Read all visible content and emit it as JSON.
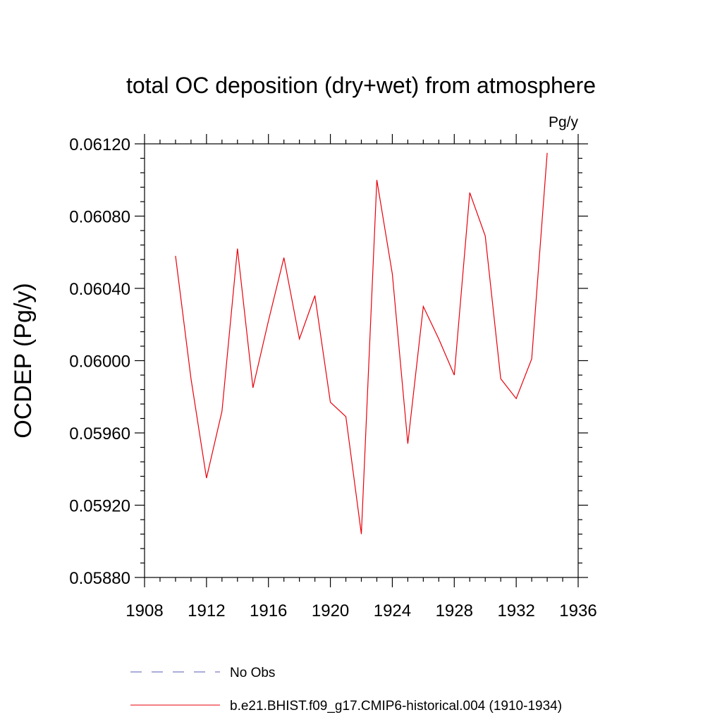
{
  "chart_data": {
    "type": "line",
    "title": "total OC deposition (dry+wet) from atmosphere",
    "units": "Pg/y",
    "xlabel": "",
    "ylabel": "OCDEP  (Pg/y)",
    "xlim": [
      1908,
      1936
    ],
    "ylim": [
      0.0588,
      0.0612
    ],
    "x_ticks": [
      "1908",
      "1912",
      "1916",
      "1920",
      "1924",
      "1928",
      "1932",
      "1936"
    ],
    "y_ticks": [
      "0.05880",
      "0.05920",
      "0.05960",
      "0.06000",
      "0.06040",
      "0.06080",
      "0.06120"
    ],
    "grid": false,
    "legend_position": "bottom",
    "series": [
      {
        "name": "No Obs",
        "style": "dashed",
        "color": "#5a5ab4",
        "x": [],
        "values": []
      },
      {
        "name": "b.e21.BHIST.f09_g17.CMIP6-historical.004 (1910-1934)",
        "style": "solid",
        "color": "#e8000b",
        "x": [
          1910,
          1911,
          1912,
          1913,
          1914,
          1915,
          1916,
          1917,
          1918,
          1919,
          1920,
          1921,
          1922,
          1923,
          1924,
          1925,
          1926,
          1927,
          1928,
          1929,
          1930,
          1931,
          1932,
          1933,
          1934
        ],
        "values": [
          0.06058,
          0.0599,
          0.05935,
          0.05972,
          0.06062,
          0.05985,
          0.06022,
          0.06057,
          0.06012,
          0.06036,
          0.05977,
          0.05969,
          0.05904,
          0.061,
          0.06048,
          0.05954,
          0.0603,
          0.06012,
          0.05992,
          0.06093,
          0.06069,
          0.0599,
          0.05979,
          0.06001,
          0.06115
        ]
      }
    ]
  }
}
